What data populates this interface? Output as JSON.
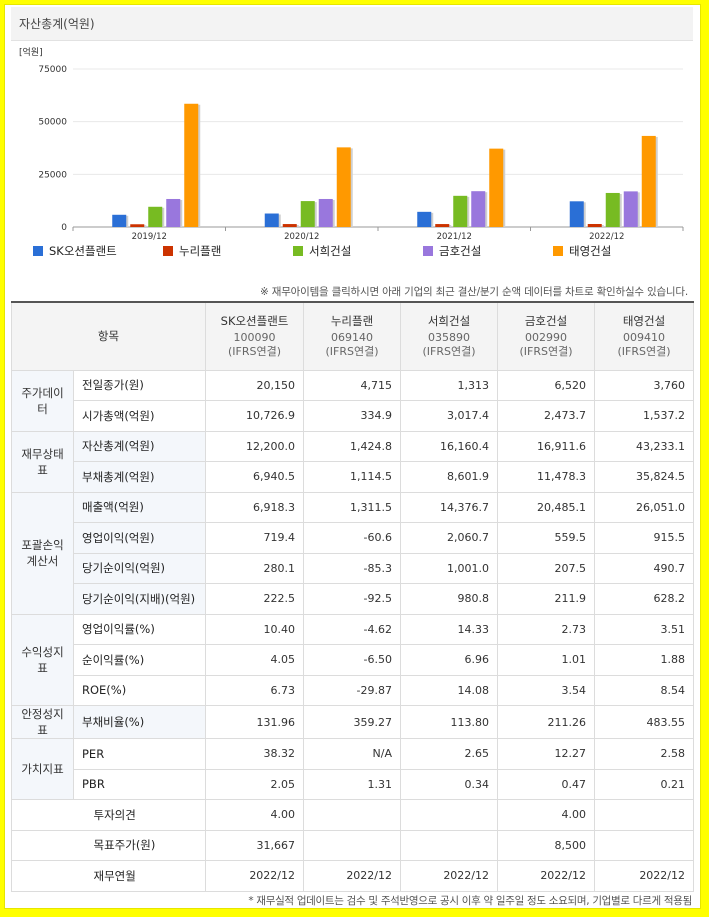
{
  "chart_title": "자산총계(억원)",
  "chart_data": {
    "type": "bar",
    "ylabel": "[억원]",
    "ylim": [
      0,
      75000
    ],
    "yticks": [
      "75000",
      "50000",
      "25000",
      "0"
    ],
    "categories": [
      "2019/12",
      "2020/12",
      "2021/12",
      "2022/12"
    ],
    "series": [
      {
        "name": "SK오션플랜트",
        "color": "#2a6fd6",
        "values": [
          5800,
          6400,
          7200,
          12200
        ]
      },
      {
        "name": "누리플랜",
        "color": "#cc3300",
        "values": [
          1300,
          1400,
          1400,
          1424.8
        ]
      },
      {
        "name": "서희건설",
        "color": "#77bb22",
        "values": [
          9600,
          12300,
          14800,
          16160.4
        ]
      },
      {
        "name": "금호건설",
        "color": "#9977dd",
        "values": [
          13300,
          13300,
          17000,
          16911.6
        ]
      },
      {
        "name": "태영건설",
        "color": "#ff9900",
        "values": [
          58500,
          37800,
          37200,
          43233.1
        ]
      }
    ]
  },
  "note": "※ 재무아이템을 클릭하시면 아래 기업의 최근 결산/분기 순액 데이터를 차트로 확인하실수 있습니다.",
  "table": {
    "header_item": "항목",
    "companies": [
      {
        "name": "SK오션플랜트",
        "code": "100090",
        "basis": "(IFRS연결)"
      },
      {
        "name": "누리플랜",
        "code": "069140",
        "basis": "(IFRS연결)"
      },
      {
        "name": "서희건설",
        "code": "035890",
        "basis": "(IFRS연결)"
      },
      {
        "name": "금호건설",
        "code": "002990",
        "basis": "(IFRS연결)"
      },
      {
        "name": "태영건설",
        "code": "009410",
        "basis": "(IFRS연결)"
      }
    ],
    "groups": [
      {
        "category": "주가데이터",
        "rows": [
          {
            "label": "전일종가(원)",
            "values": [
              "20,150",
              "4,715",
              "1,313",
              "6,520",
              "3,760"
            ]
          },
          {
            "label": "시가총액(억원)",
            "values": [
              "10,726.9",
              "334.9",
              "3,017.4",
              "2,473.7",
              "1,537.2"
            ]
          }
        ]
      },
      {
        "category": "재무상태표",
        "rows": [
          {
            "label": "자산총계(억원)",
            "values": [
              "12,200.0",
              "1,424.8",
              "16,160.4",
              "16,911.6",
              "43,233.1"
            ]
          },
          {
            "label": "부채총계(억원)",
            "values": [
              "6,940.5",
              "1,114.5",
              "8,601.9",
              "11,478.3",
              "35,824.5"
            ]
          }
        ]
      },
      {
        "category": "포괄손익계산서",
        "rows": [
          {
            "label": "매출액(억원)",
            "values": [
              "6,918.3",
              "1,311.5",
              "14,376.7",
              "20,485.1",
              "26,051.0"
            ]
          },
          {
            "label": "영업이익(억원)",
            "values": [
              "719.4",
              "-60.6",
              "2,060.7",
              "559.5",
              "915.5"
            ]
          },
          {
            "label": "당기순이익(억원)",
            "values": [
              "280.1",
              "-85.3",
              "1,001.0",
              "207.5",
              "490.7"
            ]
          },
          {
            "label": "당기순이익(지배)(억원)",
            "values": [
              "222.5",
              "-92.5",
              "980.8",
              "211.9",
              "628.2"
            ]
          }
        ]
      },
      {
        "category": "수익성지표",
        "rows": [
          {
            "label": "영업이익률(%)",
            "values": [
              "10.40",
              "-4.62",
              "14.33",
              "2.73",
              "3.51"
            ]
          },
          {
            "label": "순이익률(%)",
            "values": [
              "4.05",
              "-6.50",
              "6.96",
              "1.01",
              "1.88"
            ]
          },
          {
            "label": "ROE(%)",
            "values": [
              "6.73",
              "-29.87",
              "14.08",
              "3.54",
              "8.54"
            ]
          }
        ]
      },
      {
        "category": "안정성지표",
        "rows": [
          {
            "label": "부채비율(%)",
            "values": [
              "131.96",
              "359.27",
              "113.80",
              "211.26",
              "483.55"
            ]
          }
        ]
      },
      {
        "category": "가치지표",
        "rows": [
          {
            "label": "PER",
            "values": [
              "38.32",
              "N/A",
              "2.65",
              "12.27",
              "2.58"
            ]
          },
          {
            "label": "PBR",
            "values": [
              "2.05",
              "1.31",
              "0.34",
              "0.47",
              "0.21"
            ]
          }
        ]
      }
    ],
    "extra_rows": [
      {
        "label": "투자의견",
        "values": [
          "4.00",
          "",
          "",
          "4.00",
          ""
        ]
      },
      {
        "label": "목표주가(원)",
        "values": [
          "31,667",
          "",
          "",
          "8,500",
          ""
        ]
      },
      {
        "label": "재무연월",
        "values": [
          "2022/12",
          "2022/12",
          "2022/12",
          "2022/12",
          "2022/12"
        ]
      }
    ]
  },
  "footnote": "* 재무실적 업데이트는 검수 및 주석반영으로 공시 이후 약 일주일 정도 소요되며, 기업별로 다르게 적용됨"
}
